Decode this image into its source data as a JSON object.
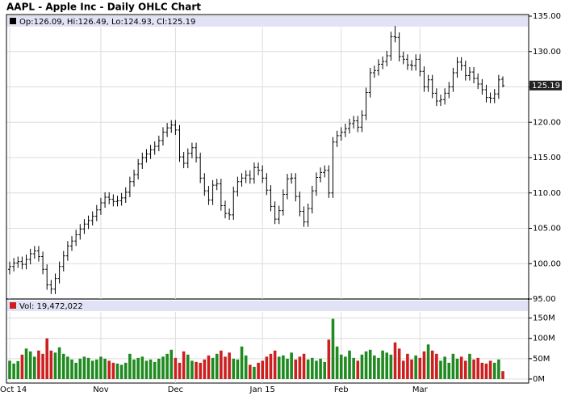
{
  "chart_data": [
    {
      "type": "ohlc",
      "title": "AAPL - Apple Inc - Daily OHLC Chart",
      "legend_text": "Op:126.09, Hi:126.49, Lo:124.93, Cl:125.19",
      "color": "#000000",
      "categories": [
        "Oct 14",
        null,
        null,
        null,
        null,
        null,
        null,
        null,
        null,
        null,
        null,
        null,
        null,
        null,
        null,
        null,
        null,
        null,
        null,
        null,
        null,
        null,
        "Nov",
        null,
        null,
        null,
        null,
        null,
        null,
        null,
        null,
        null,
        null,
        null,
        null,
        null,
        null,
        null,
        null,
        null,
        "Dec",
        null,
        null,
        null,
        null,
        null,
        null,
        null,
        null,
        null,
        null,
        null,
        null,
        null,
        null,
        null,
        null,
        null,
        null,
        null,
        null,
        "Jan 15",
        null,
        null,
        null,
        null,
        null,
        null,
        null,
        null,
        null,
        null,
        null,
        null,
        null,
        null,
        null,
        null,
        null,
        null,
        "Feb",
        null,
        null,
        null,
        null,
        null,
        null,
        null,
        null,
        null,
        null,
        null,
        null,
        null,
        null,
        null,
        null,
        null,
        null,
        "Mar",
        null,
        null,
        null,
        null,
        null,
        null,
        null,
        null,
        null,
        null,
        null,
        null,
        null,
        null,
        null,
        null,
        null,
        null,
        null,
        null
      ],
      "open": [
        99.2,
        99.6,
        100.1,
        100.3,
        99.9,
        100.6,
        101.4,
        101.8,
        101.0,
        99.2,
        97.0,
        96.4,
        97.9,
        99.6,
        101.1,
        102.5,
        103.2,
        104.1,
        104.9,
        105.6,
        106.1,
        106.7,
        107.6,
        108.6,
        109.4,
        109.1,
        108.8,
        108.9,
        109.3,
        110.1,
        111.6,
        112.6,
        114.1,
        115.0,
        115.5,
        116.1,
        116.6,
        117.4,
        118.6,
        119.2,
        119.6,
        118.9,
        115.1,
        114.2,
        115.6,
        116.4,
        115.0,
        112.1,
        110.3,
        109.0,
        111.1,
        111.3,
        108.2,
        107.1,
        106.9,
        110.2,
        111.6,
        112.1,
        112.5,
        112.0,
        113.6,
        113.2,
        112.1,
        110.4,
        108.1,
        106.3,
        107.5,
        109.8,
        112.0,
        112.1,
        109.5,
        107.4,
        105.9,
        107.8,
        110.3,
        112.2,
        112.9,
        113.2,
        110.0,
        117.2,
        118.1,
        118.6,
        119.1,
        119.8,
        120.2,
        119.3,
        121.0,
        124.2,
        127.0,
        127.3,
        128.2,
        128.6,
        129.4,
        132.1,
        132.0,
        129.3,
        128.9,
        128.1,
        128.0,
        128.9,
        127.2,
        125.0,
        126.0,
        124.1,
        123.0,
        123.2,
        124.1,
        125.0,
        127.0,
        128.5,
        128.0,
        126.6,
        127.1,
        126.2,
        125.4,
        124.6,
        123.5,
        123.4,
        124.0,
        126.09
      ],
      "high": [
        100.3,
        100.8,
        101.0,
        101.0,
        101.3,
        102.1,
        102.5,
        102.5,
        101.7,
        99.9,
        97.7,
        98.6,
        100.3,
        101.8,
        103.2,
        103.9,
        104.8,
        105.6,
        106.3,
        106.8,
        107.4,
        108.3,
        109.3,
        110.1,
        110.1,
        109.8,
        109.6,
        110.0,
        110.8,
        112.3,
        113.3,
        114.8,
        115.7,
        116.2,
        116.8,
        117.3,
        118.1,
        119.3,
        119.9,
        120.3,
        120.3,
        119.6,
        115.8,
        116.3,
        117.1,
        117.1,
        115.7,
        112.8,
        111.0,
        111.8,
        112.0,
        112.0,
        108.9,
        107.8,
        110.9,
        112.3,
        112.8,
        113.2,
        113.2,
        114.3,
        114.3,
        113.9,
        112.8,
        111.1,
        108.8,
        108.2,
        110.5,
        112.7,
        112.8,
        112.8,
        110.2,
        108.1,
        108.5,
        111.0,
        112.9,
        113.6,
        113.9,
        113.9,
        117.9,
        118.8,
        119.3,
        119.8,
        120.5,
        120.9,
        120.9,
        121.7,
        124.9,
        127.7,
        128.0,
        128.9,
        129.3,
        130.1,
        132.8,
        133.6,
        132.7,
        130.0,
        129.6,
        128.8,
        129.6,
        129.6,
        127.9,
        126.7,
        126.7,
        124.8,
        123.9,
        124.8,
        125.7,
        127.7,
        129.2,
        129.2,
        128.7,
        127.8,
        127.8,
        126.9,
        126.1,
        125.3,
        124.2,
        124.7,
        126.7,
        126.49
      ],
      "low": [
        98.5,
        98.9,
        99.4,
        99.2,
        99.2,
        99.9,
        100.7,
        100.3,
        98.5,
        96.3,
        95.7,
        95.7,
        97.2,
        98.9,
        100.4,
        101.8,
        102.5,
        103.4,
        104.2,
        104.9,
        105.4,
        106.0,
        106.9,
        107.9,
        108.4,
        108.1,
        108.1,
        108.2,
        108.6,
        109.4,
        110.9,
        111.9,
        113.4,
        114.3,
        114.8,
        115.4,
        115.9,
        116.7,
        117.9,
        118.5,
        118.2,
        114.4,
        113.5,
        113.5,
        114.9,
        114.3,
        111.4,
        109.6,
        108.3,
        108.3,
        110.4,
        107.5,
        106.4,
        106.2,
        106.2,
        109.5,
        110.9,
        111.4,
        111.3,
        111.3,
        112.5,
        111.4,
        109.7,
        107.4,
        105.6,
        105.6,
        106.8,
        109.1,
        111.3,
        108.8,
        106.7,
        105.2,
        105.2,
        107.1,
        109.6,
        111.5,
        112.2,
        109.3,
        109.3,
        116.5,
        117.4,
        117.9,
        118.4,
        119.1,
        118.6,
        118.6,
        120.3,
        123.5,
        126.3,
        126.6,
        127.5,
        127.9,
        128.7,
        131.3,
        128.6,
        128.2,
        127.4,
        127.3,
        127.3,
        126.5,
        124.3,
        124.3,
        123.4,
        122.3,
        122.3,
        122.5,
        123.4,
        124.3,
        126.3,
        127.3,
        125.9,
        125.9,
        125.5,
        124.7,
        123.9,
        122.8,
        122.7,
        122.7,
        123.3,
        124.93
      ],
      "close": [
        99.6,
        100.1,
        100.3,
        99.9,
        100.6,
        101.4,
        101.8,
        101.0,
        99.2,
        97.0,
        96.4,
        97.9,
        99.6,
        101.1,
        102.5,
        103.2,
        104.1,
        104.9,
        105.6,
        106.1,
        106.7,
        107.6,
        108.6,
        109.4,
        109.1,
        108.8,
        108.9,
        109.3,
        110.1,
        111.6,
        112.6,
        114.1,
        115.0,
        115.5,
        116.1,
        116.6,
        117.4,
        118.6,
        119.2,
        119.6,
        118.9,
        115.1,
        114.2,
        115.6,
        116.4,
        115.0,
        112.1,
        110.3,
        109.0,
        111.1,
        111.3,
        108.2,
        107.1,
        106.9,
        110.2,
        111.6,
        112.1,
        112.5,
        112.0,
        113.6,
        113.2,
        112.1,
        110.4,
        108.1,
        106.3,
        107.5,
        109.8,
        112.0,
        112.1,
        109.5,
        107.4,
        105.9,
        107.8,
        110.3,
        112.2,
        112.9,
        113.2,
        110.0,
        117.2,
        118.1,
        118.6,
        119.1,
        119.8,
        120.2,
        119.3,
        121.0,
        124.2,
        127.0,
        127.3,
        128.2,
        128.6,
        129.4,
        132.1,
        132.0,
        129.3,
        128.9,
        128.1,
        128.0,
        128.9,
        127.2,
        125.0,
        126.0,
        124.1,
        123.0,
        123.2,
        124.1,
        125.0,
        127.0,
        128.5,
        128.0,
        126.6,
        127.1,
        126.2,
        125.4,
        124.6,
        123.5,
        123.4,
        124.0,
        126.0,
        125.19
      ],
      "ylim": [
        95,
        135
      ],
      "yticks": [
        {
          "value": 95,
          "label": "95.00"
        },
        {
          "value": 100,
          "label": "100.00"
        },
        {
          "value": 105,
          "label": "105.00"
        },
        {
          "value": 110,
          "label": "110.00"
        },
        {
          "value": 115,
          "label": "115.00"
        },
        {
          "value": 120,
          "label": "120.00"
        },
        {
          "value": 125,
          "label": "125.00"
        },
        {
          "value": 130,
          "label": "130.00"
        },
        {
          "value": 135,
          "label": "135.00"
        }
      ],
      "grid": true
    },
    {
      "type": "bar",
      "legend_text": "Vol: 19,472,022",
      "up_color": "#1f8a1f",
      "down_color": "#cc2020",
      "values": [
        45,
        38,
        44,
        60,
        75,
        68,
        55,
        70,
        62,
        100,
        70,
        65,
        78,
        62,
        55,
        48,
        40,
        50,
        55,
        52,
        45,
        48,
        55,
        50,
        45,
        40,
        38,
        35,
        40,
        62,
        48,
        52,
        55,
        45,
        48,
        42,
        50,
        55,
        62,
        72,
        52,
        40,
        68,
        60,
        45,
        42,
        40,
        48,
        58,
        52,
        62,
        70,
        55,
        65,
        50,
        48,
        80,
        58,
        35,
        30,
        40,
        45,
        55,
        62,
        70,
        55,
        58,
        50,
        65,
        48,
        55,
        62,
        48,
        52,
        45,
        50,
        42,
        97,
        148,
        80,
        60,
        55,
        70,
        52,
        45,
        60,
        68,
        72,
        58,
        52,
        70,
        65,
        60,
        90,
        75,
        45,
        62,
        48,
        58,
        52,
        68,
        85,
        70,
        62,
        45,
        55,
        40,
        62,
        50,
        55,
        45,
        62,
        48,
        52,
        40,
        38,
        45,
        40,
        48,
        19.472022
      ],
      "ylim": [
        0,
        165
      ],
      "yticks": [
        {
          "value": 0,
          "label": "0M"
        },
        {
          "value": 50,
          "label": "50M"
        },
        {
          "value": 100,
          "label": "100M"
        },
        {
          "value": 150,
          "label": "150M"
        }
      ],
      "grid": true
    }
  ]
}
